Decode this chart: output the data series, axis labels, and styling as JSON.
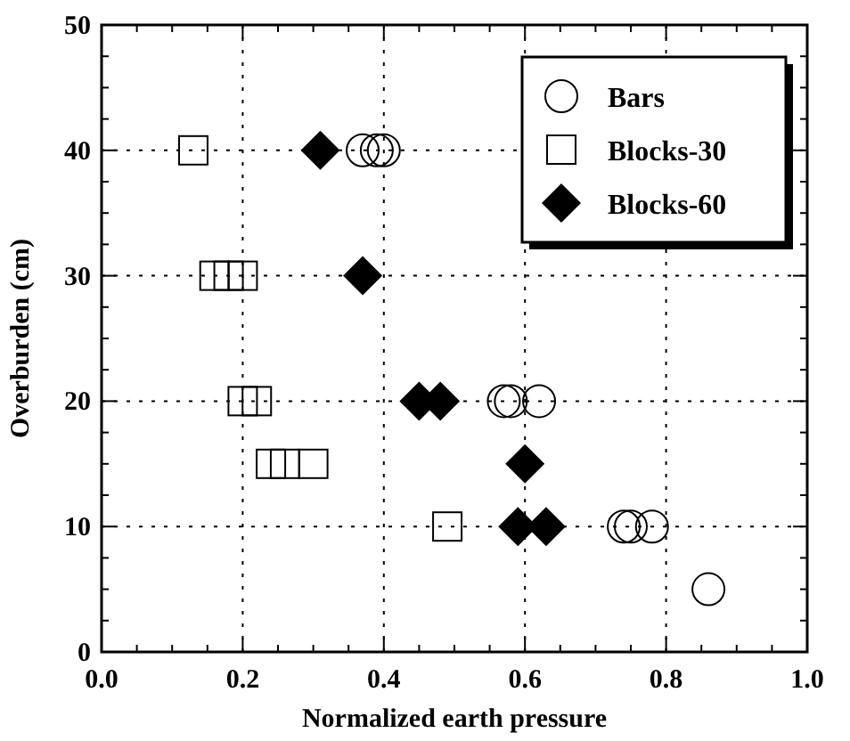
{
  "chart_data": {
    "type": "scatter",
    "xlabel": "Normalized earth pressure",
    "ylabel": "Overburden (cm)",
    "xlim": [
      0,
      1
    ],
    "ylim": [
      0,
      50
    ],
    "xticks": [
      {
        "value": 0,
        "label": "0.0"
      },
      0.2,
      0.4,
      0.6,
      0.8,
      {
        "value": 1,
        "label": "1.0"
      }
    ],
    "yticks": [
      0,
      10,
      20,
      30,
      40,
      50
    ],
    "grid": true,
    "legend": "top right",
    "series": [
      {
        "name": "Bars",
        "color": "#000000",
        "marker": "circle",
        "x": [
          0.37,
          0.39,
          0.4,
          0.57,
          0.58,
          0.62,
          0.74,
          0.75,
          0.78,
          0.86
        ],
        "values": [
          40,
          40,
          40,
          20,
          20,
          20,
          10,
          10,
          10,
          5
        ]
      },
      {
        "name": "Blocks-30",
        "color": "#000000",
        "marker": "square",
        "x": [
          0.13,
          0.16,
          0.18,
          0.2,
          0.2,
          0.22,
          0.24,
          0.26,
          0.3,
          0.49
        ],
        "values": [
          40,
          30,
          30,
          30,
          20,
          20,
          15,
          15,
          15,
          10
        ]
      },
      {
        "name": "Blocks-60",
        "color": "#000000",
        "marker": "diamond",
        "x": [
          0.31,
          0.37,
          0.45,
          0.48,
          0.6,
          0.59,
          0.63
        ],
        "values": [
          40,
          30,
          20,
          20,
          15,
          10,
          10
        ]
      }
    ]
  }
}
